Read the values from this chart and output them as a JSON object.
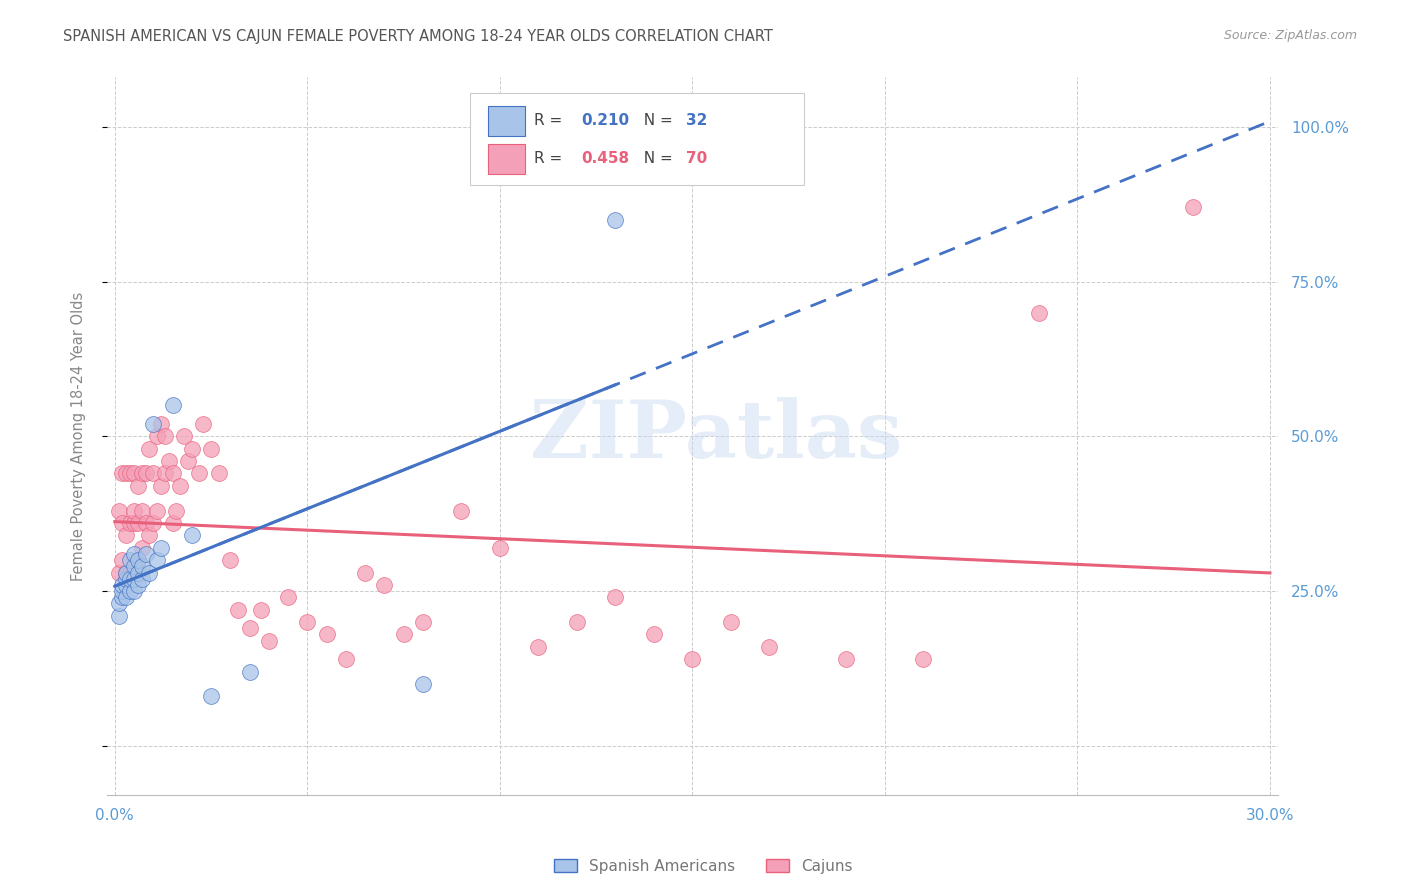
{
  "title": "SPANISH AMERICAN VS CAJUN FEMALE POVERTY AMONG 18-24 YEAR OLDS CORRELATION CHART",
  "source": "Source: ZipAtlas.com",
  "ylabel": "Female Poverty Among 18-24 Year Olds",
  "right_yticks": [
    "100.0%",
    "75.0%",
    "50.0%",
    "25.0%"
  ],
  "right_ytick_vals": [
    1.0,
    0.75,
    0.5,
    0.25
  ],
  "legend_blue_r": "0.210",
  "legend_blue_n": "32",
  "legend_pink_r": "0.458",
  "legend_pink_n": "70",
  "legend_label_blue": "Spanish Americans",
  "legend_label_pink": "Cajuns",
  "blue_color": "#a8c4e8",
  "pink_color": "#f4a0b8",
  "blue_line_color": "#4472c4",
  "pink_line_color": "#e8607a",
  "watermark": "ZIPatlas",
  "background_color": "#ffffff",
  "grid_color": "#cccccc",
  "title_color": "#555555",
  "axis_label_color": "#5b9bd5",
  "xlim": [
    -0.002,
    0.302
  ],
  "ylim": [
    -0.08,
    1.08
  ],
  "spanish_x": [
    0.001,
    0.001,
    0.002,
    0.002,
    0.002,
    0.003,
    0.003,
    0.003,
    0.003,
    0.004,
    0.004,
    0.004,
    0.005,
    0.005,
    0.005,
    0.005,
    0.006,
    0.006,
    0.006,
    0.007,
    0.007,
    0.008,
    0.009,
    0.01,
    0.011,
    0.012,
    0.015,
    0.02,
    0.025,
    0.035,
    0.08,
    0.13
  ],
  "spanish_y": [
    0.21,
    0.23,
    0.24,
    0.25,
    0.26,
    0.24,
    0.26,
    0.27,
    0.28,
    0.25,
    0.27,
    0.3,
    0.25,
    0.27,
    0.29,
    0.31,
    0.26,
    0.28,
    0.3,
    0.27,
    0.29,
    0.31,
    0.28,
    0.52,
    0.3,
    0.32,
    0.55,
    0.34,
    0.08,
    0.12,
    0.1,
    0.85
  ],
  "cajun_x": [
    0.001,
    0.001,
    0.002,
    0.002,
    0.002,
    0.003,
    0.003,
    0.003,
    0.004,
    0.004,
    0.004,
    0.005,
    0.005,
    0.005,
    0.006,
    0.006,
    0.006,
    0.007,
    0.007,
    0.007,
    0.008,
    0.008,
    0.009,
    0.009,
    0.01,
    0.01,
    0.011,
    0.011,
    0.012,
    0.012,
    0.013,
    0.013,
    0.014,
    0.015,
    0.015,
    0.016,
    0.017,
    0.018,
    0.019,
    0.02,
    0.022,
    0.023,
    0.025,
    0.027,
    0.03,
    0.032,
    0.035,
    0.038,
    0.04,
    0.045,
    0.05,
    0.055,
    0.06,
    0.065,
    0.07,
    0.075,
    0.08,
    0.09,
    0.1,
    0.11,
    0.12,
    0.13,
    0.14,
    0.15,
    0.16,
    0.17,
    0.19,
    0.21,
    0.24,
    0.28
  ],
  "cajun_y": [
    0.28,
    0.38,
    0.3,
    0.44,
    0.36,
    0.34,
    0.44,
    0.28,
    0.36,
    0.44,
    0.28,
    0.36,
    0.44,
    0.38,
    0.3,
    0.42,
    0.36,
    0.32,
    0.44,
    0.38,
    0.36,
    0.44,
    0.34,
    0.48,
    0.36,
    0.44,
    0.38,
    0.5,
    0.42,
    0.52,
    0.44,
    0.5,
    0.46,
    0.36,
    0.44,
    0.38,
    0.42,
    0.5,
    0.46,
    0.48,
    0.44,
    0.52,
    0.48,
    0.44,
    0.3,
    0.22,
    0.19,
    0.22,
    0.17,
    0.24,
    0.2,
    0.18,
    0.14,
    0.28,
    0.26,
    0.18,
    0.2,
    0.38,
    0.32,
    0.16,
    0.2,
    0.24,
    0.18,
    0.14,
    0.2,
    0.16,
    0.14,
    0.14,
    0.7,
    0.87
  ]
}
